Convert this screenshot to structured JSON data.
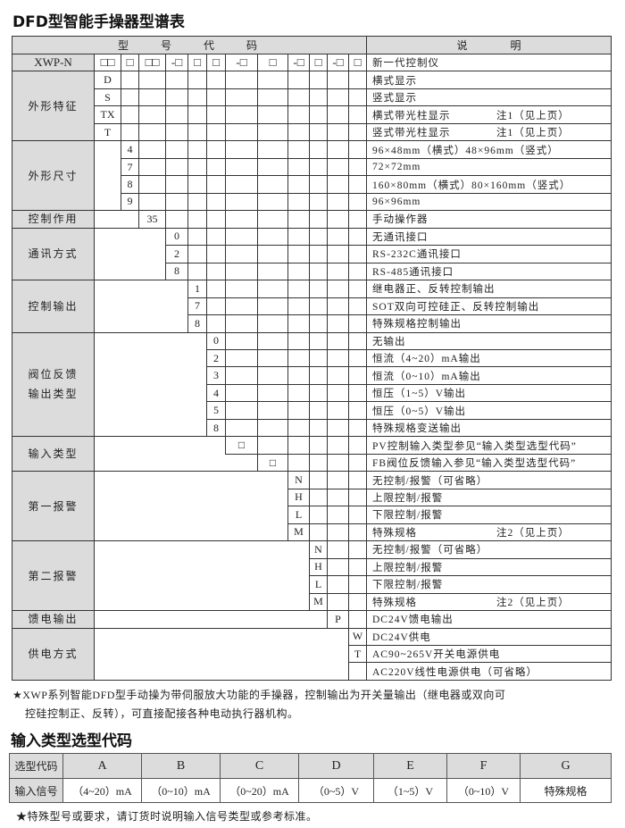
{
  "title": "DFD型智能手操器型谱表",
  "header": {
    "code": "型　　号　　代　　码",
    "desc": "说　　　　明"
  },
  "model_row": {
    "label": "XWP-N",
    "code_marks": [
      "□□",
      "□",
      "□□",
      "-□",
      "□",
      "□",
      "-□",
      "□",
      "-□",
      "□",
      "-□",
      "□"
    ],
    "desc": "新一代控制仪"
  },
  "groups": [
    {
      "label": "外形特征",
      "rows": [
        {
          "code": "D",
          "desc": "横式显示"
        },
        {
          "code": "S",
          "desc": "竖式显示"
        },
        {
          "code": "TX",
          "desc": "横式带光柱显示",
          "note": "注1（见上页）"
        },
        {
          "code": "T",
          "desc": "竖式带光柱显示",
          "note": "注1（见上页）"
        }
      ]
    },
    {
      "label": "外形尺寸",
      "rows": [
        {
          "code": "4",
          "desc": "96×48mm（横式）48×96mm（竖式）"
        },
        {
          "code": "7",
          "desc": "72×72mm"
        },
        {
          "code": "8",
          "desc": "160×80mm（横式）80×160mm（竖式）"
        },
        {
          "code": "9",
          "desc": "96×96mm"
        }
      ]
    },
    {
      "label": "控制作用",
      "rows": [
        {
          "code": "35",
          "desc": "手动操作器"
        }
      ]
    },
    {
      "label": "通讯方式",
      "rows": [
        {
          "code": "0",
          "desc": "无通讯接口"
        },
        {
          "code": "2",
          "desc": "RS-232C通讯接口"
        },
        {
          "code": "8",
          "desc": "RS-485通讯接口"
        }
      ]
    },
    {
      "label": "控制输出",
      "rows": [
        {
          "code": "1",
          "desc": "继电器正、反转控制输出"
        },
        {
          "code": "7",
          "desc": "SOT双向可控硅正、反转控制输出"
        },
        {
          "code": "8",
          "desc": "特殊规格控制输出"
        }
      ]
    },
    {
      "label": "阀位反馈\n输出类型",
      "rows": [
        {
          "code": "0",
          "desc": "无输出"
        },
        {
          "code": "2",
          "desc": "恒流（4~20）mA输出"
        },
        {
          "code": "3",
          "desc": "恒流（0~10）mA输出"
        },
        {
          "code": "4",
          "desc": "恒压（1~5）V输出"
        },
        {
          "code": "5",
          "desc": "恒压（0~5）V输出"
        },
        {
          "code": "8",
          "desc": "特殊规格变送输出"
        }
      ]
    },
    {
      "label": "输入类型",
      "rows": [
        {
          "code": "□",
          "desc": "PV控制输入类型参见“输入类型选型代码”"
        },
        {
          "code": "□",
          "desc": "FB阀位反馈输入参见“输入类型选型代码”"
        }
      ]
    },
    {
      "label": "第一报警",
      "rows": [
        {
          "code": "N",
          "desc": "无控制/报警（可省略）"
        },
        {
          "code": "H",
          "desc": "上限控制/报警"
        },
        {
          "code": "L",
          "desc": "下限控制/报警"
        },
        {
          "code": "M",
          "desc": "特殊规格",
          "note": "注2（见上页）"
        }
      ]
    },
    {
      "label": "第二报警",
      "rows": [
        {
          "code": "N",
          "desc": "无控制/报警（可省略）"
        },
        {
          "code": "H",
          "desc": "上限控制/报警"
        },
        {
          "code": "L",
          "desc": "下限控制/报警"
        },
        {
          "code": "M",
          "desc": "特殊规格",
          "note": "注2（见上页）"
        }
      ]
    },
    {
      "label": "馈电输出",
      "rows": [
        {
          "code": "P",
          "desc": "DC24V馈电输出"
        }
      ]
    },
    {
      "label": "供电方式",
      "rows": [
        {
          "code": "W",
          "desc": "DC24V供电"
        },
        {
          "code": "T",
          "desc": "AC90~265V开关电源供电"
        },
        {
          "code": "",
          "desc": "AC220V线性电源供电（可省略）"
        }
      ]
    }
  ],
  "footnote1": "★XWP系列智能DFD型手动操为带伺服放大功能的手操器，控制输出为开关量输出（继电器或双向可",
  "footnote1b": "控硅控制正、反转），可直接配接各种电动执行器机构。",
  "input_table": {
    "title": "输入类型选型代码",
    "row_labels": [
      "选型代码",
      "输入信号"
    ],
    "codes": [
      "A",
      "B",
      "C",
      "D",
      "E",
      "F",
      "G"
    ],
    "signals": [
      "（4~20）mA",
      "（0~10）mA",
      "（0~20）mA",
      "（0~5）V",
      "（1~5）V",
      "（0~10）V",
      "特殊规格"
    ]
  },
  "footnote2": "★特殊型号或要求，请订货时说明输入信号类型或参考标准。"
}
